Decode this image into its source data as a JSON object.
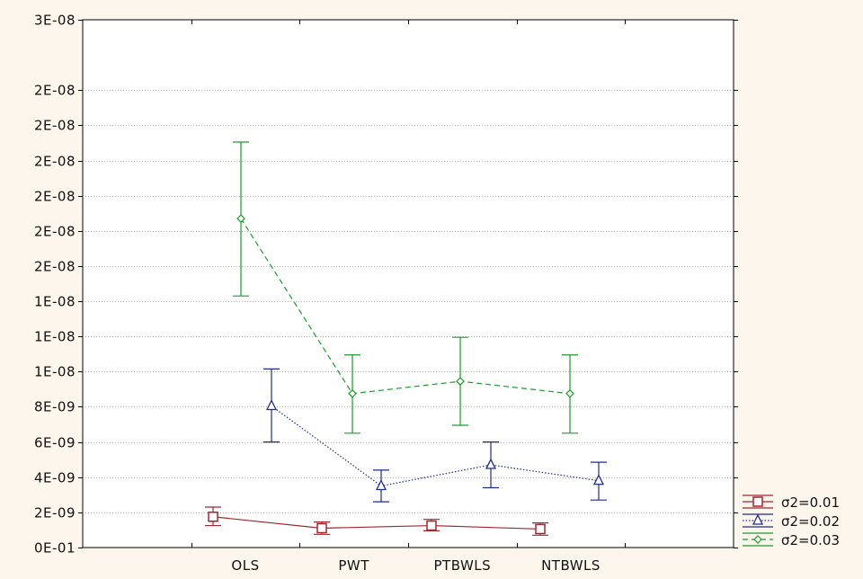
{
  "chart_data": {
    "type": "line",
    "categories": [
      "OLS",
      "PWT",
      "PTBWLS",
      "NTBWLS"
    ],
    "ylim": [
      0,
      3e-08
    ],
    "ytick_values": [
      0,
      2e-09,
      4e-09,
      6e-09,
      8e-09,
      1e-08,
      1.2e-08,
      1.4e-08,
      1.6e-08,
      1.8e-08,
      2e-08,
      2.2e-08,
      2.4e-08,
      2.6e-08,
      3e-08
    ],
    "ytick_labels": [
      "0E-01",
      "2E-09",
      "4E-09",
      "6E-09",
      "8E-09",
      "1E-08",
      "1E-08",
      "1E-08",
      "2E-08",
      "2E-08",
      "2E-08",
      "2E-08",
      "2E-08",
      "2E-08",
      "3E-08"
    ],
    "grid": "horizontal dotted",
    "legend_position": "bottom-right",
    "series": [
      {
        "name": "σ2=0.01",
        "color": "#a3262f",
        "line_style": "solid",
        "marker": "square",
        "mean": [
          1.75e-09,
          1.1e-09,
          1.25e-09,
          1.05e-09
        ],
        "lower": [
          1.25e-09,
          7.5e-10,
          9.5e-10,
          7e-10
        ],
        "upper": [
          2.3e-09,
          1.45e-09,
          1.6e-09,
          1.4e-09
        ]
      },
      {
        "name": "σ2=0.02",
        "color": "#1f2b8f",
        "line_style": "dotted",
        "marker": "triangle",
        "mean": [
          8.05e-09,
          3.5e-09,
          4.7e-09,
          3.8e-09
        ],
        "lower": [
          6e-09,
          2.6e-09,
          3.4e-09,
          2.7e-09
        ],
        "upper": [
          1.015e-08,
          4.4e-09,
          6e-09,
          4.85e-09
        ]
      },
      {
        "name": "σ2=0.03",
        "color": "#1e9a2c",
        "line_style": "dashed",
        "marker": "diamond",
        "mean": [
          1.87e-08,
          8.75e-09,
          9.45e-09,
          8.75e-09
        ],
        "lower": [
          1.43e-08,
          6.5e-09,
          6.95e-09,
          6.5e-09
        ],
        "upper": [
          2.305e-08,
          1.095e-08,
          1.195e-08,
          1.095e-08
        ]
      }
    ]
  }
}
